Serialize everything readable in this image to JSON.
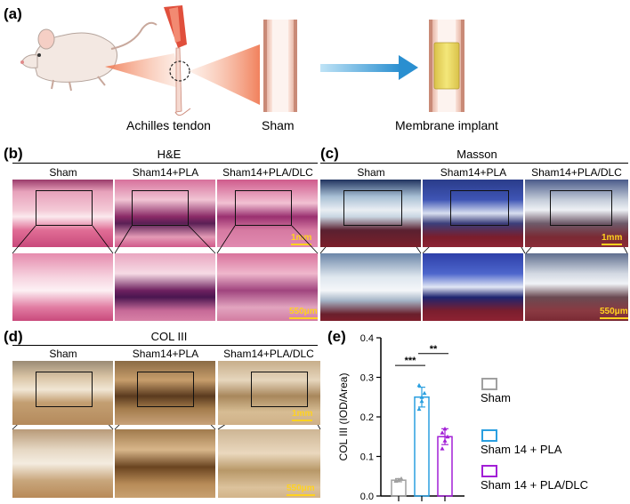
{
  "panels": {
    "a": {
      "label": "(a)",
      "achilles": "Achilles tendon",
      "sham": "Sham",
      "implant": "Membrane implant"
    },
    "b": {
      "label": "(b)",
      "title": "H&E",
      "cols": [
        "Sham",
        "Sham14+PLA",
        "Sham14+PLA/DLC"
      ],
      "scale_top": "1mm",
      "scale_bottom": "550μm"
    },
    "c": {
      "label": "(c)",
      "title": "Masson",
      "cols": [
        "Sham",
        "Sham14+PLA",
        "Sham14+PLA/DLC"
      ],
      "scale_top": "1mm",
      "scale_bottom": "550μm"
    },
    "d": {
      "label": "(d)",
      "title": "COL III",
      "cols": [
        "Sham",
        "Sham14+PLA",
        "Sham14+PLA/DLC"
      ],
      "scale_top": "1mm",
      "scale_bottom": "550μm"
    },
    "e": {
      "label": "(e)"
    }
  },
  "colors": {
    "sham": "#a0a0a0",
    "pla": "#2a9fe0",
    "dlc": "#a21fd6",
    "he_bg": "#e06d95",
    "masson_bg": "#3d4f95",
    "col_bg": "#c9a47b",
    "scale": "#ffd21f"
  },
  "chart_data": {
    "type": "bar",
    "categories": [
      "Sham",
      "Sham 14 + PLA",
      "Sham 14 + PLA/DLC"
    ],
    "values": [
      0.04,
      0.25,
      0.15
    ],
    "errors": [
      0.004,
      0.025,
      0.02
    ],
    "points": [
      [
        0.038,
        0.041,
        0.044,
        0.04
      ],
      [
        0.22,
        0.24,
        0.26,
        0.28,
        0.25
      ],
      [
        0.12,
        0.14,
        0.15,
        0.16,
        0.17
      ]
    ],
    "ylabel": "COL III (IOD/Area)",
    "yticks": [
      "0.0",
      "0.1",
      "0.2",
      "0.3",
      "0.4"
    ],
    "ylim": [
      0,
      0.4
    ],
    "significance": [
      "***",
      "**"
    ],
    "legend": [
      "Sham",
      "Sham 14 + PLA",
      "Sham 14 + PLA/DLC"
    ],
    "legend_position": "right"
  }
}
